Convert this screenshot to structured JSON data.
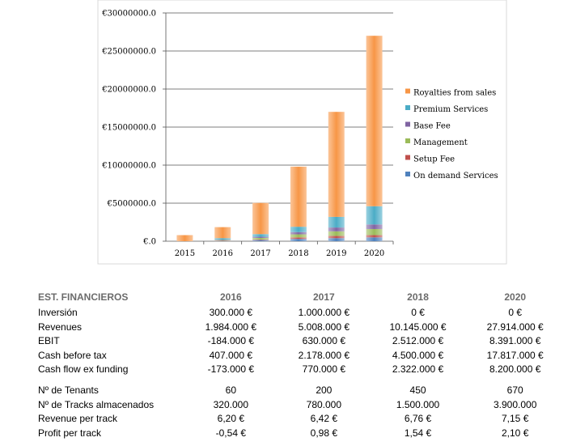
{
  "chart_data": {
    "type": "bar",
    "stacked": true,
    "categories": [
      "2015",
      "2016",
      "2017",
      "2018",
      "2019",
      "2020"
    ],
    "y_ticks": [
      "€30000000.0",
      "€25000000.0",
      "€20000000.0",
      "€15000000.0",
      "€10000000.0",
      "€5000000.0",
      "€.0"
    ],
    "ylim": [
      0,
      30000000
    ],
    "grid": true,
    "legend_position": "right",
    "series": [
      {
        "name": "On demand Services",
        "color": "#4f81bd",
        "values": [
          0,
          50000,
          150000,
          300000,
          400000,
          500000
        ]
      },
      {
        "name": "Setup Fee",
        "color": "#c0504d",
        "values": [
          0,
          30000,
          80000,
          200000,
          300000,
          300000
        ]
      },
      {
        "name": "Management",
        "color": "#9bbb59",
        "values": [
          0,
          70000,
          200000,
          400000,
          600000,
          800000
        ]
      },
      {
        "name": "Base Fee",
        "color": "#8064a2",
        "values": [
          0,
          50000,
          150000,
          300000,
          500000,
          600000
        ]
      },
      {
        "name": "Premium Services",
        "color": "#4bacc6",
        "values": [
          0,
          200000,
          350000,
          700000,
          1400000,
          2400000
        ]
      },
      {
        "name": "Royalties from sales",
        "color": "#f79646",
        "values": [
          800000,
          1450000,
          4100000,
          7900000,
          13800000,
          22400000
        ]
      }
    ]
  },
  "table": {
    "header": [
      "EST. FINANCIEROS",
      "2016",
      "2017",
      "2018",
      "2020"
    ],
    "rows": [
      [
        "Inversión",
        "300.000 €",
        "1.000.000 €",
        "0 €",
        "0 €"
      ],
      [
        "Revenues",
        "1.984.000 €",
        "5.008.000 €",
        "10.145.000 €",
        "27.914.000 €"
      ],
      [
        "EBIT",
        "-184.000 €",
        "630.000 €",
        "2.512.000 €",
        "8.391.000 €"
      ],
      [
        "Cash before tax",
        "407.000 €",
        "2.178.000 €",
        "4.500.000 €",
        "17.817.000 €"
      ],
      [
        "Cash flow ex funding",
        "-173.000 €",
        "770.000 €",
        "2.322.000 €",
        "8.200.000 €"
      ]
    ],
    "rows2": [
      [
        "Nº de Tenants",
        "60",
        "200",
        "450",
        "670"
      ],
      [
        "Nº de Tracks almacenados",
        "320.000",
        "780.000",
        "1.500.000",
        "3.900.000"
      ],
      [
        "Revenue per track",
        "6,20 €",
        "6,42 €",
        "6,76 €",
        "7,15 €"
      ],
      [
        "Profit per track",
        "-0,54 €",
        "0,98 €",
        "1,54 €",
        "2,10 €"
      ]
    ]
  }
}
